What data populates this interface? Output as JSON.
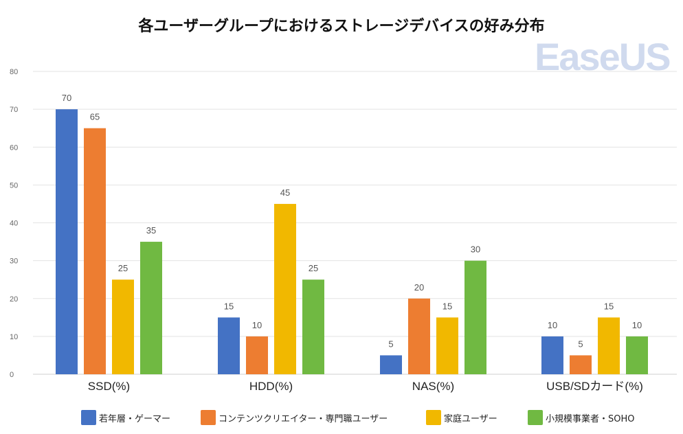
{
  "title": "各ユーザーグループにおけるストレージデバイスの好み分布",
  "watermark": "EaseUS",
  "chart_data": {
    "type": "bar",
    "title": "各ユーザーグループにおけるストレージデバイスの好み分布",
    "xlabel": "",
    "ylabel": "",
    "ylim": [
      0,
      80
    ],
    "yticks": [
      0,
      10,
      20,
      30,
      40,
      50,
      60,
      70,
      80
    ],
    "grid": true,
    "legend_position": "bottom",
    "categories": [
      "SSD(%)",
      "HDD(%)",
      "NAS(%)",
      "USB/SDカード(%)"
    ],
    "series": [
      {
        "name": "若年層・ゲーマー",
        "color": "#4472c4",
        "values": [
          70,
          15,
          5,
          10
        ]
      },
      {
        "name": "コンテンツクリエイター・専門職ユーザー",
        "color": "#ed7d31",
        "values": [
          65,
          10,
          20,
          5
        ]
      },
      {
        "name": "家庭ユーザー",
        "color": "#f1b800",
        "values": [
          25,
          45,
          15,
          15
        ]
      },
      {
        "name": "小規模事業者・SOHO",
        "color": "#70b942",
        "values": [
          35,
          25,
          30,
          10
        ]
      }
    ]
  }
}
